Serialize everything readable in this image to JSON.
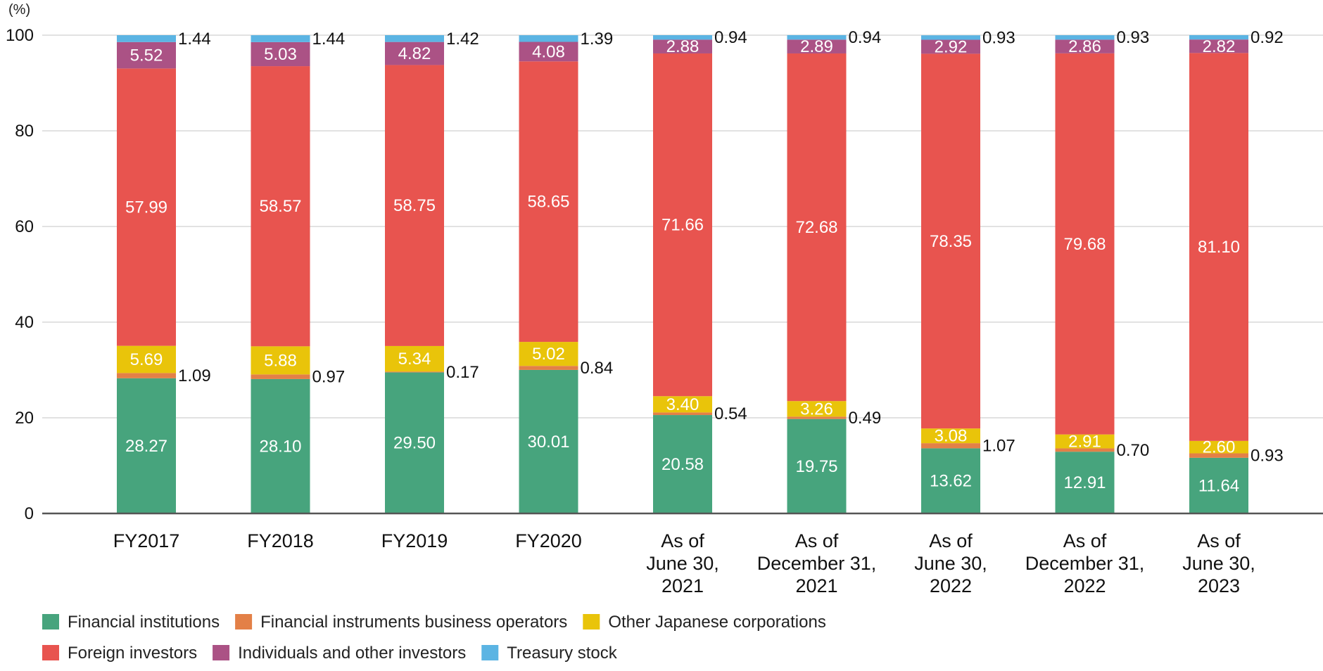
{
  "chart_data": {
    "type": "bar",
    "stacked": true,
    "unit_label": "(%)",
    "ylim": [
      0,
      100
    ],
    "yticks": [
      "0",
      "20",
      "40",
      "60",
      "80",
      "100"
    ],
    "categories": [
      [
        "FY2017"
      ],
      [
        "FY2018"
      ],
      [
        "FY2019"
      ],
      [
        "FY2020"
      ],
      [
        "As of",
        "June 30,",
        "2021"
      ],
      [
        "As of",
        "December 31,",
        "2021"
      ],
      [
        "As of",
        "June 30,",
        "2022"
      ],
      [
        "As of",
        "December 31,",
        "2022"
      ],
      [
        "As of",
        "June 30,",
        "2023"
      ]
    ],
    "series": [
      {
        "name": "Financial institutions",
        "color": "#47a47d",
        "label_position": "inside",
        "values": [
          28.27,
          28.1,
          29.5,
          30.01,
          20.58,
          19.75,
          13.62,
          12.91,
          11.64
        ],
        "labels": [
          "28.27",
          "28.10",
          "29.50",
          "30.01",
          "20.58",
          "19.75",
          "13.62",
          "12.91",
          "11.64"
        ]
      },
      {
        "name": "Financial instruments business operators",
        "color": "#e38047",
        "label_position": "outside",
        "values": [
          1.09,
          0.97,
          0.17,
          0.84,
          0.54,
          0.49,
          1.07,
          0.7,
          0.93
        ],
        "labels": [
          "1.09",
          "0.97",
          "0.17",
          "0.84",
          "0.54",
          "0.49",
          "1.07",
          "0.70",
          "0.93"
        ]
      },
      {
        "name": "Other Japanese corporations",
        "color": "#e9c40a",
        "label_position": "inside",
        "values": [
          5.69,
          5.88,
          5.34,
          5.02,
          3.4,
          3.26,
          3.08,
          2.91,
          2.6
        ],
        "labels": [
          "5.69",
          "5.88",
          "5.34",
          "5.02",
          "3.40",
          "3.26",
          "3.08",
          "2.91",
          "2.60"
        ]
      },
      {
        "name": "Foreign investors",
        "color": "#e8544f",
        "label_position": "inside",
        "values": [
          57.99,
          58.57,
          58.75,
          58.65,
          71.66,
          72.68,
          78.35,
          79.68,
          81.1
        ],
        "labels": [
          "57.99",
          "58.57",
          "58.75",
          "58.65",
          "71.66",
          "72.68",
          "78.35",
          "79.68",
          "81.10"
        ]
      },
      {
        "name": "Individuals and other investors",
        "color": "#ab5285",
        "label_position": "inside",
        "values": [
          5.52,
          5.03,
          4.82,
          4.08,
          2.88,
          2.89,
          2.92,
          2.86,
          2.82
        ],
        "labels": [
          "5.52",
          "5.03",
          "4.82",
          "4.08",
          "2.88",
          "2.89",
          "2.92",
          "2.86",
          "2.82"
        ]
      },
      {
        "name": "Treasury stock",
        "color": "#5bb4e3",
        "label_position": "outside",
        "values": [
          1.44,
          1.44,
          1.42,
          1.39,
          0.94,
          0.94,
          0.93,
          0.93,
          0.92
        ],
        "labels": [
          "1.44",
          "1.44",
          "1.42",
          "1.39",
          "0.94",
          "0.94",
          "0.93",
          "0.93",
          "0.92"
        ]
      }
    ],
    "legend": {
      "rows": [
        [
          "Financial institutions",
          "Financial instruments business operators",
          "Other Japanese corporations"
        ],
        [
          "Foreign investors",
          "Individuals and other investors",
          "Treasury stock"
        ]
      ],
      "placement": "bottom"
    },
    "grid": true
  }
}
